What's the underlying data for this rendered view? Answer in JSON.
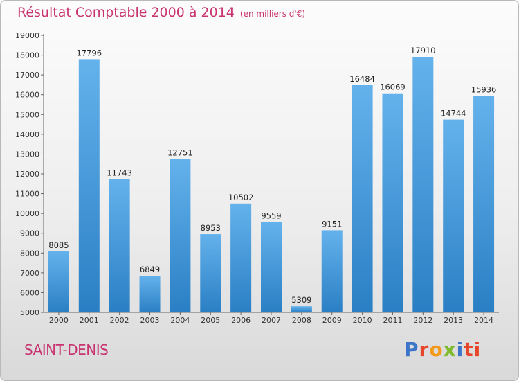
{
  "title": "Résultat Comptable 2000 à 2014",
  "unit": "(en milliers d'€)",
  "location": "SAINT-DENIS",
  "logo": [
    "P",
    "r",
    "o",
    "x",
    "i",
    "ti"
  ],
  "colors": {
    "title": "#c93470",
    "bar_light": "#64b2ec",
    "bar_dark": "#2a7fc4"
  },
  "chart_data": {
    "type": "bar",
    "title": "Résultat Comptable 2000 à 2014",
    "categories": [
      "2000",
      "2001",
      "2002",
      "2003",
      "2004",
      "2005",
      "2006",
      "2007",
      "2008",
      "2009",
      "2010",
      "2011",
      "2012",
      "2013",
      "2014"
    ],
    "values": [
      8085,
      17796,
      11743,
      6849,
      12751,
      8953,
      10502,
      9559,
      5309,
      9151,
      16484,
      16069,
      17910,
      14744,
      15936
    ],
    "ylim": [
      5000,
      19000
    ],
    "yticks": [
      5000,
      6000,
      7000,
      8000,
      9000,
      10000,
      11000,
      12000,
      13000,
      14000,
      15000,
      16000,
      17000,
      18000,
      19000
    ],
    "grid": false,
    "xlabel": "",
    "ylabel": ""
  }
}
